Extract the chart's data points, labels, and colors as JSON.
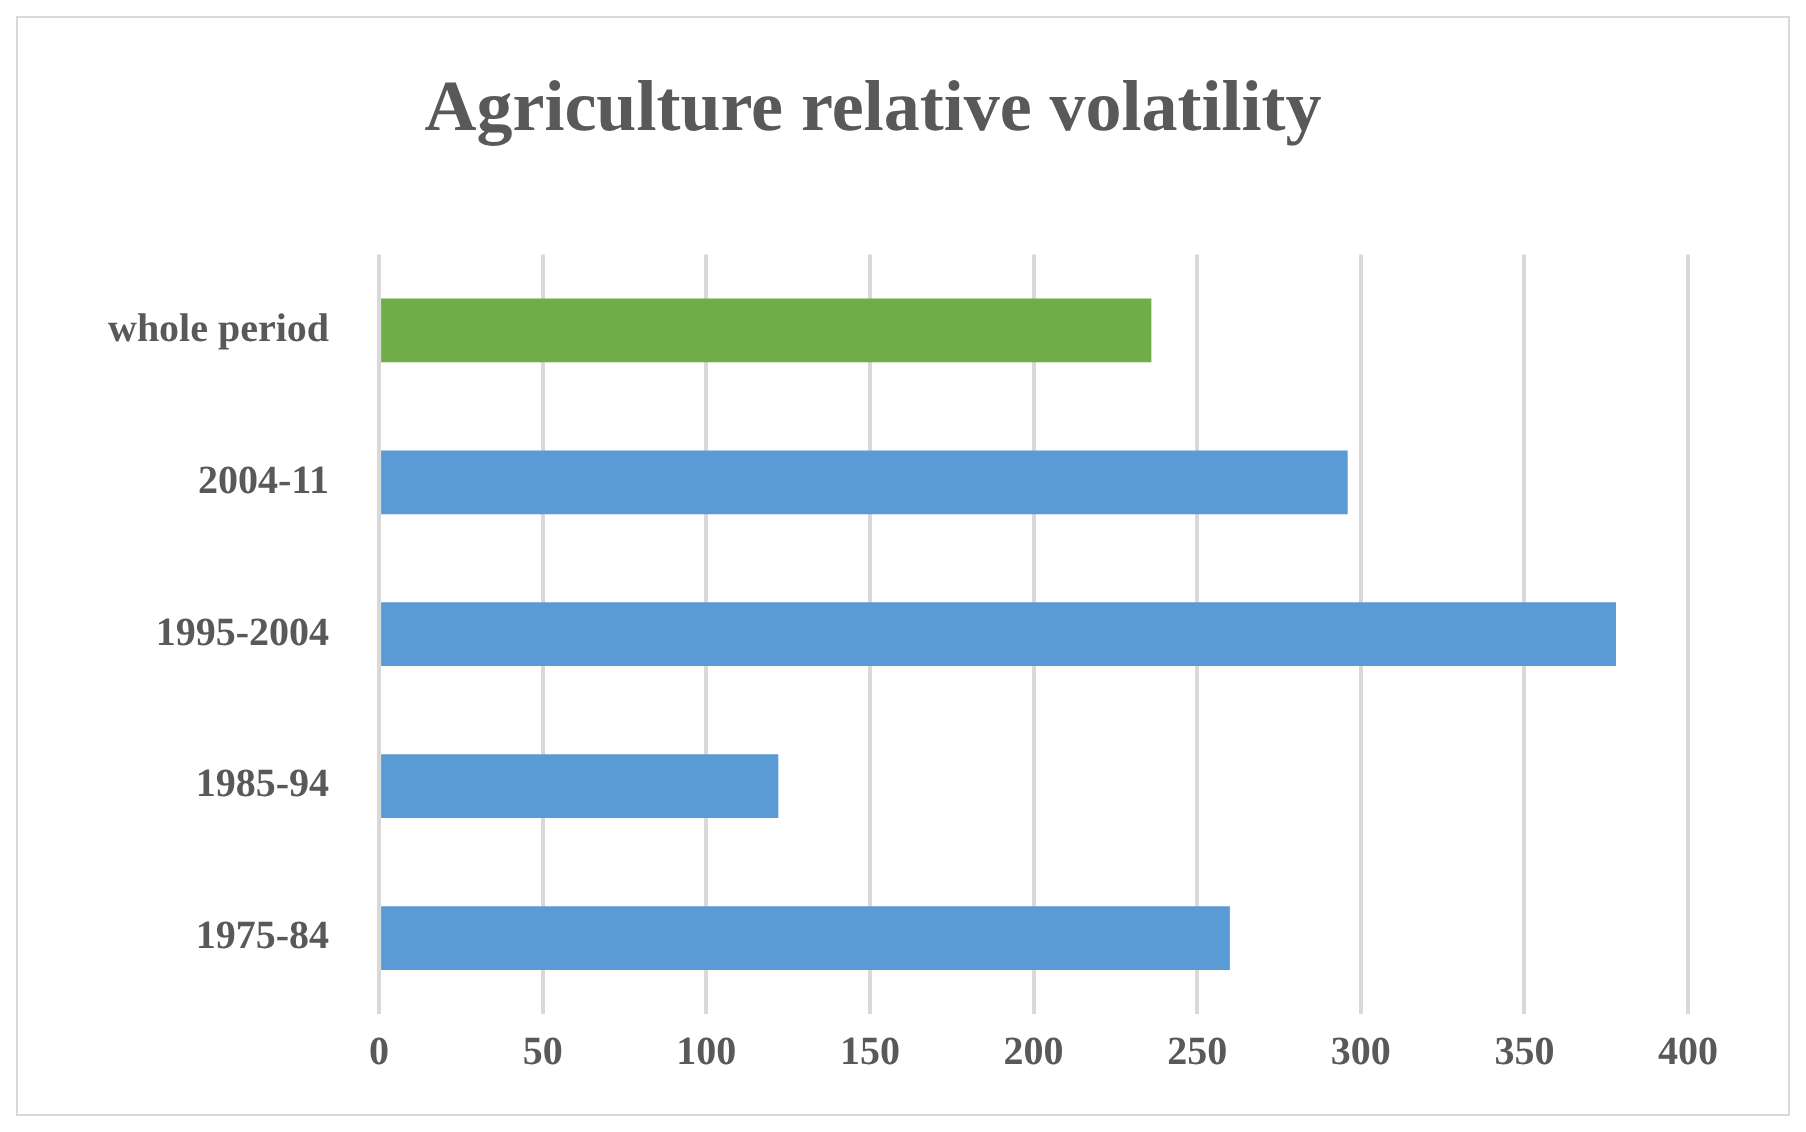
{
  "chart_data": {
    "type": "bar",
    "orientation": "horizontal",
    "title": "Agriculture relative volatility",
    "categories": [
      "whole period",
      "2004-11",
      "1995-2004",
      "1985-94",
      "1975-84"
    ],
    "values": [
      236,
      296,
      378,
      122,
      260
    ],
    "colors": [
      "#70ad47",
      "#5b9bd5",
      "#5b9bd5",
      "#5b9bd5",
      "#5b9bd5"
    ],
    "xlim": [
      0,
      400
    ],
    "xticks": [
      0,
      50,
      100,
      150,
      200,
      250,
      300,
      350,
      400
    ],
    "grid": "x",
    "legend": false
  }
}
